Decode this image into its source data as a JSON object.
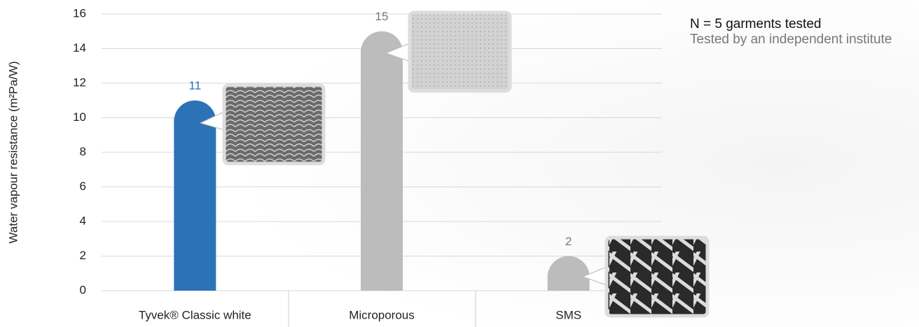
{
  "chart_data": {
    "type": "bar",
    "y_label": "Water vapour resistance (m²Pa/W)",
    "categories": [
      "Tyvek® Classic white",
      "Microporous",
      "SMS"
    ],
    "values": [
      11,
      15,
      2
    ],
    "colors": [
      "#2b73b6",
      "#bcbcbc",
      "#bcbcbc"
    ],
    "ylim": [
      0,
      16
    ],
    "yticks": [
      0,
      2,
      4,
      6,
      8,
      10,
      12,
      14,
      16
    ],
    "grid": true,
    "notes": [
      "N = 5 garments tested",
      "Tested by an independent institute"
    ]
  }
}
